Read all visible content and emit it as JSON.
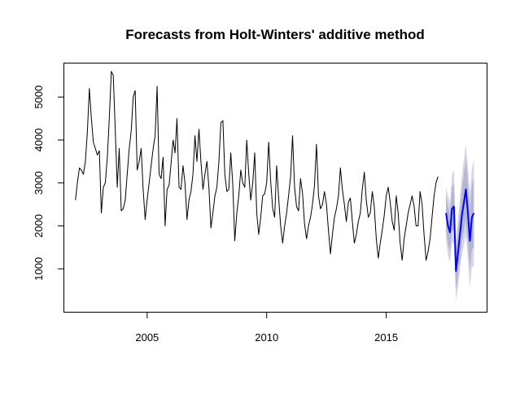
{
  "chart_data": {
    "type": "line",
    "title": "Forecasts from Holt-Winters' additive method",
    "xlabel": "",
    "ylabel": "",
    "xlim": [
      2001.5,
      2019.2
    ],
    "ylim": [
      0,
      5800
    ],
    "x_ticks": [
      2005,
      2010,
      2015
    ],
    "y_ticks": [
      1000,
      2000,
      3000,
      4000,
      5000
    ],
    "grid": false,
    "legend": "none",
    "series": [
      {
        "role": "observed",
        "start": 2002.0,
        "frequency": 12,
        "color": "#000000",
        "values": [
          2600,
          3000,
          3350,
          3300,
          3200,
          3500,
          4200,
          5200,
          4500,
          3950,
          3800,
          3650,
          3750,
          2300,
          2900,
          3000,
          3600,
          4500,
          5600,
          5500,
          4200,
          2900,
          3800,
          2350,
          2400,
          2600,
          3200,
          3800,
          4200,
          5000,
          5150,
          3300,
          3500,
          3800,
          2850,
          2150,
          2600,
          3000,
          3400,
          3800,
          4100,
          5250,
          3200,
          3100,
          3600,
          2000,
          2850,
          2950,
          3450,
          4000,
          3700,
          4500,
          2900,
          2850,
          3400,
          3000,
          2150,
          2600,
          2800,
          3200,
          4100,
          3500,
          4250,
          3500,
          2850,
          3200,
          3500,
          2900,
          1950,
          2300,
          2700,
          2900,
          3500,
          4400,
          4450,
          3200,
          2800,
          2850,
          3700,
          2950,
          1650,
          2300,
          2700,
          3300,
          3000,
          2900,
          4000,
          3200,
          2600,
          3000,
          3700,
          2300,
          1800,
          2200,
          2700,
          2750,
          3000,
          3950,
          3050,
          2400,
          2200,
          3400,
          2650,
          2000,
          1600,
          2000,
          2300,
          2700,
          3150,
          4100,
          2900,
          2450,
          2350,
          3100,
          2750,
          2050,
          1700,
          2000,
          2200,
          2500,
          2950,
          3900,
          2700,
          2400,
          2500,
          2800,
          2500,
          1900,
          1350,
          1800,
          2200,
          2400,
          2700,
          3350,
          2850,
          2500,
          2100,
          2550,
          2650,
          2100,
          1600,
          1800,
          2100,
          2300,
          2850,
          3250,
          2600,
          2200,
          2300,
          2800,
          2450,
          1700,
          1250,
          1600,
          1900,
          2250,
          2700,
          2900,
          2550,
          2100,
          1900,
          2700,
          2300,
          1600,
          1200,
          1700,
          2000,
          2300,
          2500,
          2700,
          2450,
          2000,
          2000,
          2800,
          2500,
          1800,
          1200,
          1400,
          1700,
          2200,
          2700,
          3000,
          3150
        ]
      },
      {
        "role": "forecast",
        "start": 2017.5,
        "frequency": 12,
        "color": "#0000ff",
        "values": [
          2300,
          2000,
          1850,
          2400,
          2450,
          950,
          1350,
          1800,
          2250,
          2550,
          2850,
          2300,
          1650,
          2200,
          2300
        ],
        "lower_80": [
          1900,
          1550,
          1400,
          1900,
          1900,
          500,
          850,
          1250,
          1650,
          1900,
          2150,
          1600,
          950,
          1450,
          1500
        ],
        "upper_80": [
          2700,
          2450,
          2300,
          2900,
          3000,
          1400,
          1850,
          2350,
          2850,
          3200,
          3550,
          3000,
          2350,
          2950,
          3100
        ],
        "lower_95": [
          1700,
          1300,
          1150,
          1600,
          1600,
          250,
          550,
          950,
          1300,
          1550,
          1800,
          1200,
          550,
          1050,
          1050
        ],
        "upper_95": [
          2900,
          2700,
          2550,
          3200,
          3300,
          1650,
          2150,
          2650,
          3200,
          3550,
          3900,
          3400,
          2750,
          3350,
          3550
        ]
      }
    ]
  }
}
